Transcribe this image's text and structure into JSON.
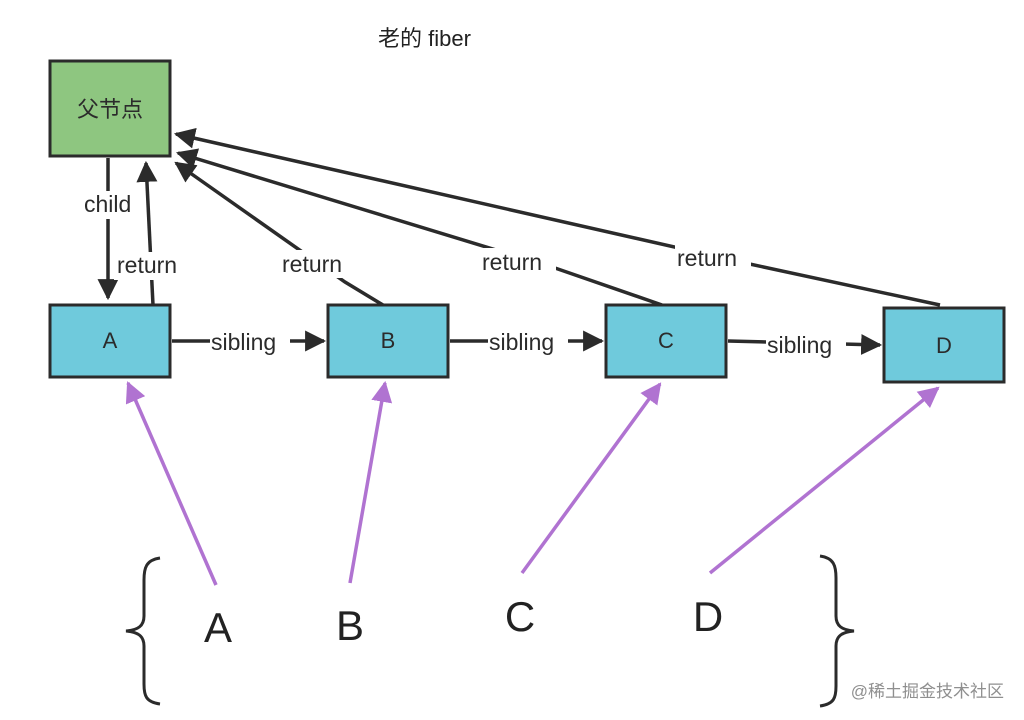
{
  "title": "老的 fiber",
  "parent_node": {
    "label": "父节点"
  },
  "nodes": [
    {
      "id": "A",
      "label": "A"
    },
    {
      "id": "B",
      "label": "B"
    },
    {
      "id": "C",
      "label": "C"
    },
    {
      "id": "D",
      "label": "D"
    }
  ],
  "edges": {
    "child": "child",
    "return": "return",
    "sibling": "sibling"
  },
  "new_children": [
    {
      "id": "A",
      "label": "A"
    },
    {
      "id": "B",
      "label": "B"
    },
    {
      "id": "C",
      "label": "C"
    },
    {
      "id": "D",
      "label": "D"
    }
  ],
  "colors": {
    "parent_fill": "#8ec680",
    "node_fill": "#6fcadc",
    "stroke": "#2b2b2b",
    "mapping_arrow": "#b073d1"
  },
  "watermark": "@稀土掘金技术社区"
}
